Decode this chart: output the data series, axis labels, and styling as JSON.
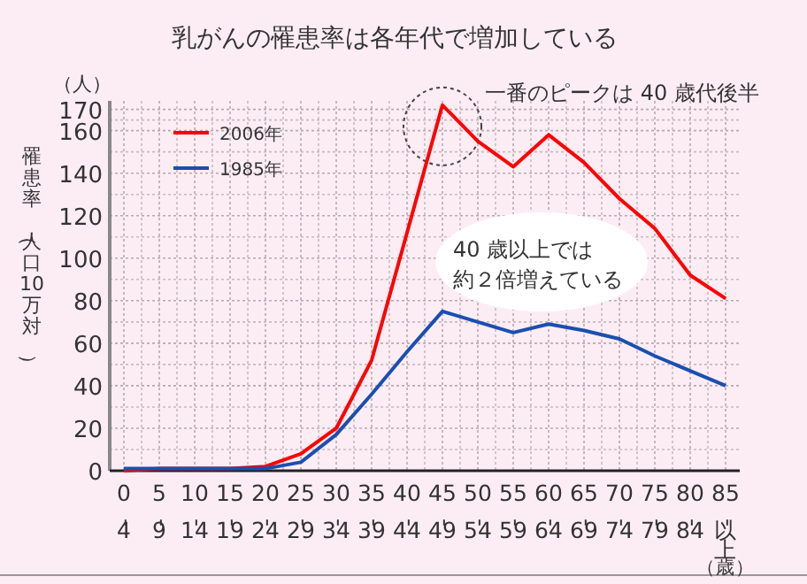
{
  "chart_data": {
    "type": "line",
    "title": "乳がんの罹患率は各年代で増加している",
    "ylabel": "罹患率（人口10万対）",
    "xlabel": "（歳）",
    "categories": [
      "0-4",
      "5-9",
      "10-14",
      "15-19",
      "20-24",
      "25-29",
      "30-34",
      "35-39",
      "40-44",
      "45-49",
      "50-54",
      "55-59",
      "60-64",
      "65-69",
      "70-74",
      "75-79",
      "80-84",
      "85-以上"
    ],
    "series": [
      {
        "name": "2006年",
        "color": "#ff0000",
        "values": [
          0,
          1,
          1,
          1,
          2,
          8,
          20,
          52,
          112,
          172,
          155,
          143,
          158,
          145,
          128,
          114,
          92,
          81
        ]
      },
      {
        "name": "1985年",
        "color": "#1a4fb0",
        "values": [
          1,
          1,
          1,
          1,
          1,
          4,
          17,
          36,
          56,
          75,
          70,
          65,
          69,
          66,
          62,
          54,
          47,
          40
        ]
      }
    ],
    "ylim": [
      0,
      174
    ],
    "yticks": [
      0,
      20,
      40,
      60,
      80,
      100,
      120,
      140,
      160,
      170
    ],
    "grid": true,
    "legend": "top left",
    "marker": "none",
    "line_style": "solid",
    "annotations": [
      "（人）",
      {
        "text": "一番のピークは 40 歳代後半",
        "x": "45-49",
        "y": 172
      },
      "40 歳以上では約２倍増えている"
    ]
  }
}
